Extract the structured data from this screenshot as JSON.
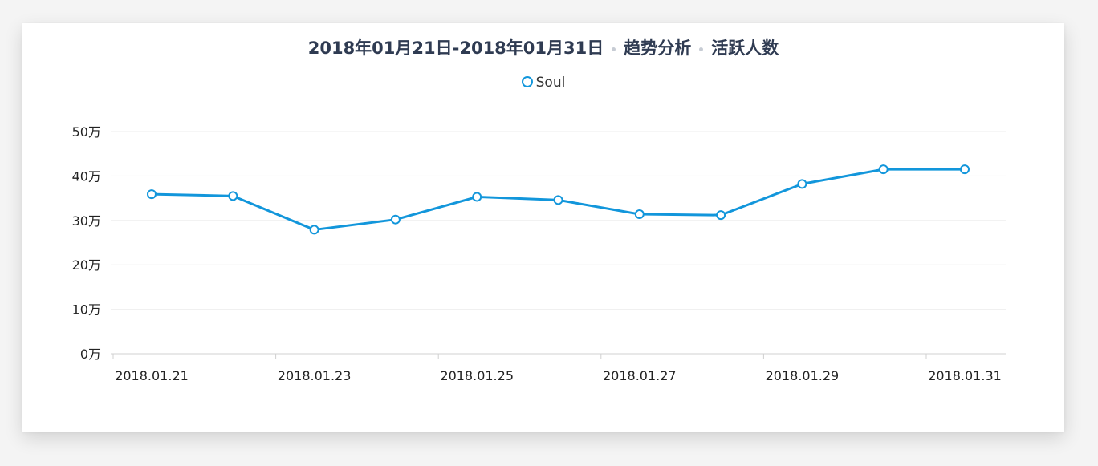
{
  "title": {
    "date_range": "2018年01月21日-2018年01月31日",
    "section": "趋势分析",
    "metric": "活跃人数"
  },
  "colors": {
    "series": "#1296db",
    "grid": "#eeeeee",
    "axis": "#d0d0d0"
  },
  "chart_data": {
    "type": "line",
    "x": [
      "2018.01.21",
      "2018.01.22",
      "2018.01.23",
      "2018.01.24",
      "2018.01.25",
      "2018.01.26",
      "2018.01.27",
      "2018.01.28",
      "2018.01.29",
      "2018.01.30",
      "2018.01.31"
    ],
    "x_tick_labels": [
      "2018.01.21",
      "2018.01.23",
      "2018.01.25",
      "2018.01.27",
      "2018.01.29",
      "2018.01.31"
    ],
    "y_tick_labels": [
      "0万",
      "10万",
      "20万",
      "30万",
      "40万",
      "50万"
    ],
    "ylim": [
      0,
      500000
    ],
    "grid": true,
    "legend": "top-center",
    "series": [
      {
        "name": "Soul",
        "values": [
          359000,
          355000,
          279000,
          302000,
          353000,
          346000,
          314000,
          312000,
          382000,
          415000,
          415000
        ]
      }
    ]
  }
}
